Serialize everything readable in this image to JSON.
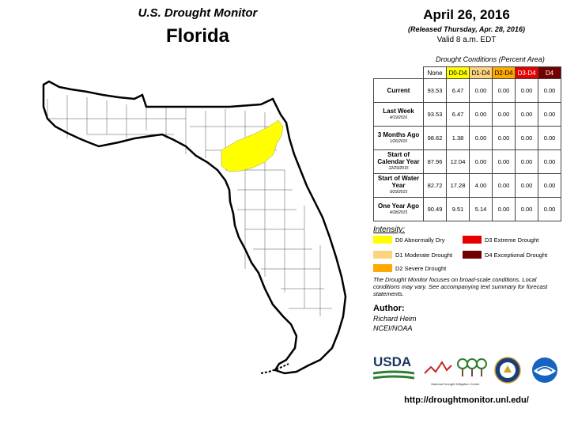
{
  "header": {
    "title": "U.S. Drought Monitor",
    "state": "Florida",
    "date": "April 26, 2016",
    "released": "(Released Thursday, Apr. 28, 2016)",
    "valid": "Valid 8 a.m. EDT"
  },
  "table": {
    "caption": "Drought Conditions (Percent Area)",
    "columns": [
      "None",
      "D0-D4",
      "D1-D4",
      "D2-D4",
      "D3-D4",
      "D4"
    ],
    "column_colors": [
      "#ffffff",
      "#ffff00",
      "#fcd37f",
      "#ffaa00",
      "#e60000",
      "#730000"
    ],
    "rows": [
      {
        "label": "Current",
        "sub": "",
        "values": [
          "93.53",
          "6.47",
          "0.00",
          "0.00",
          "0.00",
          "0.00"
        ]
      },
      {
        "label": "Last Week",
        "sub": "4/19/2016",
        "values": [
          "93.53",
          "6.47",
          "0.00",
          "0.00",
          "0.00",
          "0.00"
        ]
      },
      {
        "label": "3 Months Ago",
        "sub": "1/26/2016",
        "values": [
          "98.62",
          "1.38",
          "0.00",
          "0.00",
          "0.00",
          "0.00"
        ]
      },
      {
        "label": "Start of Calendar Year",
        "sub": "12/29/2015",
        "values": [
          "87.96",
          "12.04",
          "0.00",
          "0.00",
          "0.00",
          "0.00"
        ]
      },
      {
        "label": "Start of Water Year",
        "sub": "9/29/2015",
        "values": [
          "82.72",
          "17.28",
          "4.00",
          "0.00",
          "0.00",
          "0.00"
        ]
      },
      {
        "label": "One Year Ago",
        "sub": "4/28/2015",
        "values": [
          "90.49",
          "9.51",
          "5.14",
          "0.00",
          "0.00",
          "0.00"
        ]
      }
    ]
  },
  "legend": {
    "title": "Intensity:",
    "items": [
      {
        "label": "D0 Abnormally Dry",
        "color": "#ffff00"
      },
      {
        "label": "D1 Moderate Drought",
        "color": "#fcd37f"
      },
      {
        "label": "D2 Severe Drought",
        "color": "#ffaa00"
      },
      {
        "label": "D3 Extreme Drought",
        "color": "#e60000"
      },
      {
        "label": "D4 Exceptional Drought",
        "color": "#730000"
      }
    ]
  },
  "note": "The Drought Monitor focuses on broad-scale conditions. Local conditions may vary. See accompanying text summary for forecast statements.",
  "author": {
    "label": "Author:",
    "name": "Richard Heim",
    "org": "NCEI/NOAA"
  },
  "logos": {
    "usda": "USDA",
    "ndmc": "National Drought Mitigation Center"
  },
  "url": "http://droughtmonitor.unl.edu/",
  "map": {
    "region": "Florida",
    "drought_areas": [
      {
        "category": "D0",
        "description": "North-central Florida band"
      }
    ]
  }
}
